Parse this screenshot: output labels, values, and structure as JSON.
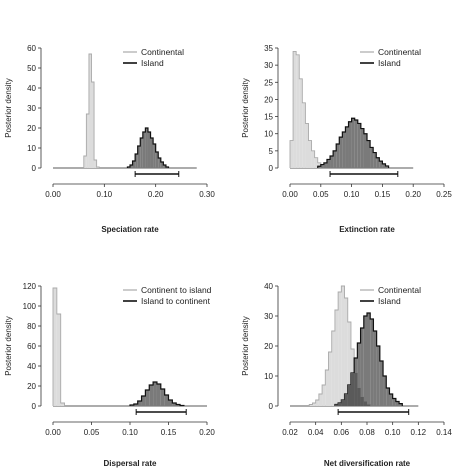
{
  "chart_data": [
    {
      "type": "histogram",
      "xlabel": "Speciation rate",
      "ylabel": "Posterior density",
      "xlim": [
        0,
        0.3
      ],
      "ylim": [
        0,
        60
      ],
      "xticks": [
        "0.00",
        "0.10",
        "0.20",
        "0.30"
      ],
      "yticks": [
        "0",
        "10",
        "20",
        "30",
        "40",
        "50",
        "60"
      ],
      "legend_position": "top-right",
      "bin_width": 0.005,
      "series": [
        {
          "name": "Continental",
          "fill": "#dcdcdc",
          "stroke": "#aaaaaa",
          "x_start": 0.06,
          "values": [
            6,
            27,
            57,
            43,
            4,
            0.5
          ]
        },
        {
          "name": "Island",
          "fill": "#7a7a7a",
          "stroke": "#111111",
          "x_start": 0.145,
          "values": [
            0.5,
            1.5,
            3.5,
            7,
            11,
            15,
            18,
            20,
            18,
            15,
            12,
            8,
            5,
            3,
            1.5,
            0.5
          ]
        }
      ],
      "interval": [
        0.16,
        0.245
      ],
      "baseline": [
        0,
        0.28
      ]
    },
    {
      "type": "histogram",
      "xlabel": "Extinction rate",
      "ylabel": "Posterior density",
      "xlim": [
        0,
        0.25
      ],
      "ylim": [
        0,
        35
      ],
      "xticks": [
        "0.00",
        "0.05",
        "0.10",
        "0.15",
        "0.20",
        "0.25"
      ],
      "yticks": [
        "0",
        "5",
        "10",
        "15",
        "20",
        "25",
        "30",
        "35"
      ],
      "legend_position": "top-right",
      "bin_width": 0.005,
      "series": [
        {
          "name": "Continental",
          "fill": "#dcdcdc",
          "stroke": "#aaaaaa",
          "x_start": 0.0,
          "values": [
            8,
            34,
            33,
            26,
            19,
            13,
            8,
            5,
            3,
            1.5,
            0.5
          ]
        },
        {
          "name": "Island",
          "fill": "#7a7a7a",
          "stroke": "#111111",
          "x_start": 0.045,
          "values": [
            0.5,
            1,
            1.5,
            2.5,
            3.5,
            5,
            7,
            9,
            10.5,
            12,
            13.5,
            14.5,
            14,
            13,
            11.5,
            10,
            8,
            6,
            4.5,
            3,
            2,
            1.2,
            0.6
          ]
        }
      ],
      "interval": [
        0.065,
        0.175
      ],
      "baseline": [
        0,
        0.2
      ]
    },
    {
      "type": "histogram",
      "xlabel": "Dispersal rate",
      "ylabel": "Posterior density",
      "xlim": [
        0,
        0.2
      ],
      "ylim": [
        0,
        120
      ],
      "xticks": [
        "0.00",
        "0.05",
        "0.10",
        "0.15",
        "0.20"
      ],
      "yticks": [
        "0",
        "20",
        "40",
        "60",
        "80",
        "100",
        "120"
      ],
      "legend_position": "top-right",
      "bin_width": 0.005,
      "series": [
        {
          "name": "Continent to island",
          "fill": "#dcdcdc",
          "stroke": "#aaaaaa",
          "x_start": 0.0,
          "values": [
            118,
            92,
            3
          ]
        },
        {
          "name": "Island to continent",
          "fill": "#7a7a7a",
          "stroke": "#111111",
          "x_start": 0.1,
          "values": [
            1,
            2,
            5,
            10,
            16,
            21,
            24,
            22,
            17,
            11,
            6,
            3,
            1.5,
            0.5
          ]
        }
      ],
      "interval": [
        0.108,
        0.173
      ],
      "baseline": [
        0,
        0.2
      ]
    },
    {
      "type": "histogram",
      "xlabel": "Net diversification rate",
      "ylabel": "Posterior density",
      "xlim": [
        0.02,
        0.14
      ],
      "ylim": [
        0,
        40
      ],
      "xticks": [
        "0.02",
        "0.04",
        "0.06",
        "0.08",
        "0.10",
        "0.12",
        "0.14"
      ],
      "yticks": [
        "0",
        "10",
        "20",
        "30",
        "40"
      ],
      "legend_position": "top-right",
      "bin_width": 0.0025,
      "series": [
        {
          "name": "Continental",
          "fill": "#dcdcdc",
          "stroke": "#aaaaaa",
          "x_start": 0.035,
          "values": [
            0.5,
            1,
            2,
            4,
            7,
            12,
            18,
            25,
            32,
            38,
            40,
            36,
            28,
            19,
            11,
            6,
            3,
            1.5,
            0.5
          ]
        },
        {
          "name": "Island",
          "fill": "#7a7a7a",
          "stroke": "#111111",
          "x_start": 0.055,
          "values": [
            0.5,
            1,
            2,
            4,
            7,
            11,
            16,
            21,
            26,
            30,
            31,
            29,
            25,
            20,
            15,
            10,
            6,
            4,
            2.5,
            1.5,
            0.8
          ]
        }
      ],
      "overlap_fill": "#5a5a5a",
      "interval": [
        0.0575,
        0.1125
      ],
      "baseline": [
        0.02,
        0.12
      ]
    }
  ]
}
